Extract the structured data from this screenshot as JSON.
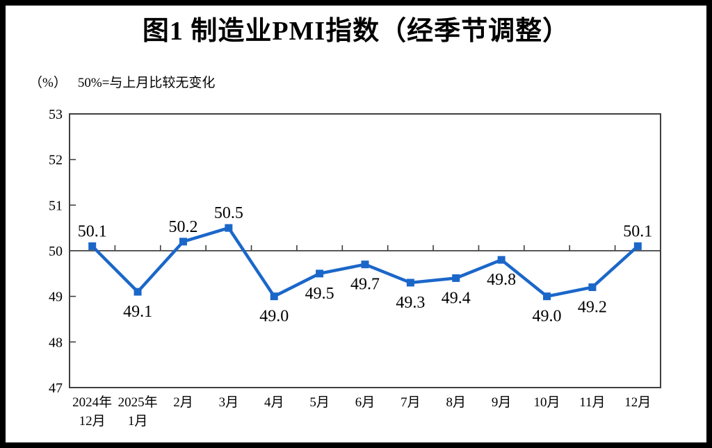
{
  "figure": {
    "title": "图1  制造业PMI指数（经季节调整）",
    "unit_label": "（%）",
    "note": "50%=与上月比较无变化"
  },
  "chart_data": {
    "type": "line",
    "title": "图1 制造业PMI指数（经季节调整）",
    "unit": "%",
    "annotation": "50%=与上月比较无变化",
    "categories": [
      [
        "2024年",
        "12月"
      ],
      [
        "2025年",
        "1月"
      ],
      [
        "2月"
      ],
      [
        "3月"
      ],
      [
        "4月"
      ],
      [
        "5月"
      ],
      [
        "6月"
      ],
      [
        "7月"
      ],
      [
        "8月"
      ],
      [
        "9月"
      ],
      [
        "10月"
      ],
      [
        "11月"
      ],
      [
        "12月"
      ]
    ],
    "series": [
      {
        "name": "制造业PMI指数",
        "values": [
          50.1,
          49.1,
          50.2,
          50.5,
          49.0,
          49.5,
          49.7,
          49.3,
          49.4,
          49.8,
          49.0,
          49.2,
          50.1
        ]
      }
    ],
    "data_labels": [
      "50.1",
      "49.1",
      "50.2",
      "50.5",
      "49.0",
      "49.5",
      "49.7",
      "49.3",
      "49.4",
      "49.8",
      "49.0",
      "49.2",
      "50.1"
    ],
    "label_positions": [
      "above",
      "below",
      "above",
      "above",
      "below",
      "below",
      "below",
      "below",
      "below",
      "below",
      "below",
      "below",
      "above"
    ],
    "ylim": [
      47,
      53
    ],
    "yticks": [
      47,
      48,
      49,
      50,
      51,
      52,
      53
    ],
    "reference_line": 50,
    "grid": false,
    "legend": "none",
    "colors": {
      "line": "#1B67C9",
      "marker": "#1B67C9",
      "axis": "#3F3F3F",
      "text": "#000000"
    }
  }
}
